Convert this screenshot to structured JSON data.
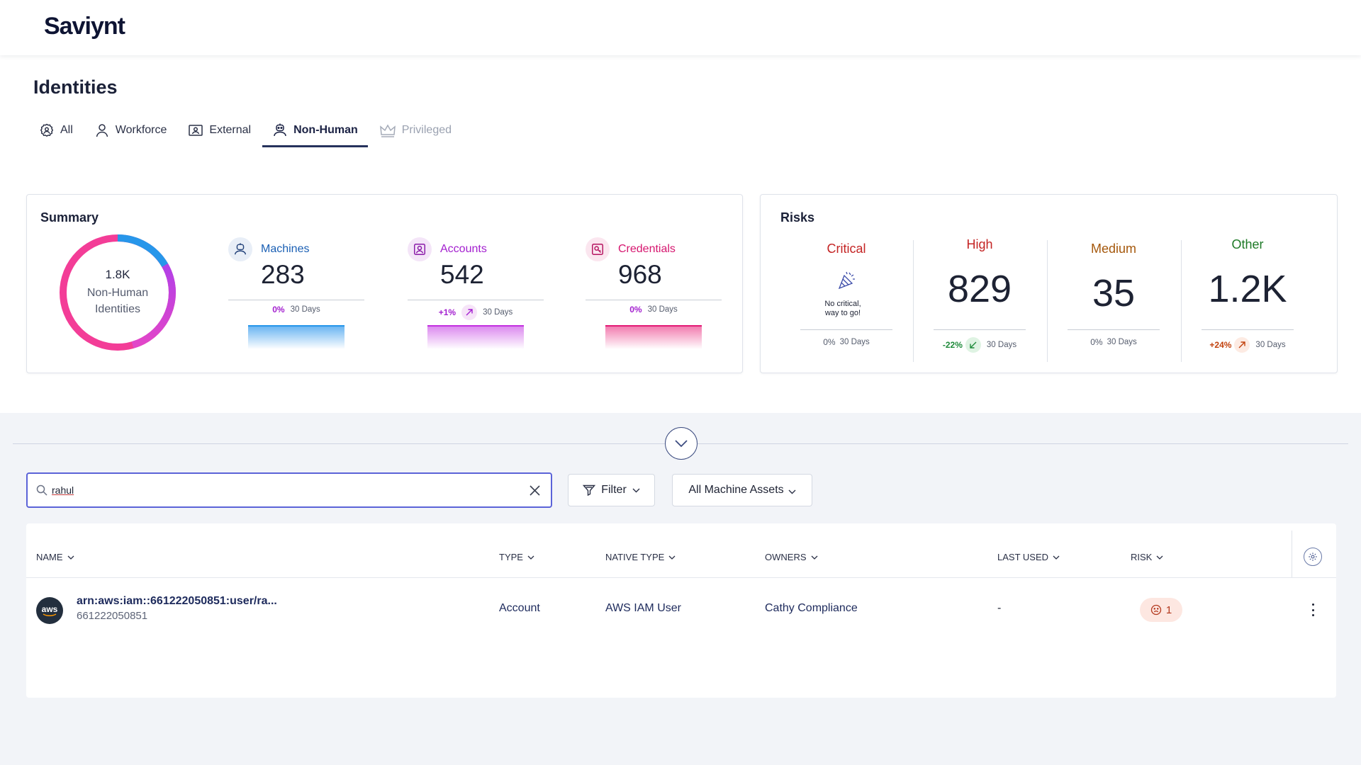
{
  "app": {
    "logo": "Saviynt"
  },
  "page": {
    "title": "Identities"
  },
  "tabs": [
    {
      "label": "All"
    },
    {
      "label": "Workforce"
    },
    {
      "label": "External"
    },
    {
      "label": "Non-Human"
    },
    {
      "label": "Privileged"
    }
  ],
  "active_tab": "Non-Human",
  "summary": {
    "title": "Summary",
    "total": "1.8K",
    "total_label_1": "Non-Human",
    "total_label_2": "Identities",
    "metrics": [
      {
        "label": "Machines",
        "value": "283",
        "change": "0%",
        "period": "30 Days",
        "color": "#1a5fb4",
        "icon": "robot-icon"
      },
      {
        "label": "Accounts",
        "value": "542",
        "change": "+1%",
        "period": "30 Days",
        "color": "#a31fcf",
        "icon": "account-icon"
      },
      {
        "label": "Credentials",
        "value": "968",
        "change": "0%",
        "period": "30 Days",
        "color": "#d6166f",
        "icon": "credential-icon"
      }
    ]
  },
  "risks": {
    "title": "Risks",
    "critical": {
      "label": "Critical",
      "message_1": "No critical,",
      "message_2": "way to go!",
      "change": "0%",
      "period": "30 Days",
      "color": "#c42424"
    },
    "high": {
      "label": "High",
      "value": "829",
      "change": "-22%",
      "period": "30 Days",
      "color": "#c42424"
    },
    "medium": {
      "label": "Medium",
      "value": "35",
      "change": "0%",
      "period": "30 Days",
      "color": "#a5580c"
    },
    "other": {
      "label": "Other",
      "value": "1.2K",
      "change": "+24%",
      "period": "30 Days",
      "color": "#1e7a27"
    }
  },
  "search": {
    "value": "rahul",
    "placeholder": "Search"
  },
  "filter": {
    "label": "Filter"
  },
  "asset_select": {
    "label": "All Machine Assets"
  },
  "table": {
    "columns": [
      "NAME",
      "TYPE",
      "NATIVE TYPE",
      "OWNERS",
      "LAST USED",
      "RISK"
    ],
    "rows": [
      {
        "icon": "aws",
        "name": "arn:aws:iam::661222050851:user/ra...",
        "sub": "661222050851",
        "type": "Account",
        "native_type": "AWS IAM User",
        "owner": "Cathy Compliance",
        "last_used": "-",
        "risk": "1"
      }
    ]
  }
}
